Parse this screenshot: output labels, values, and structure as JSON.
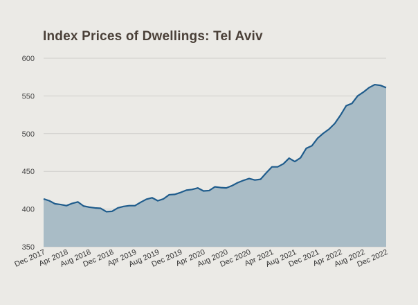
{
  "chart_data": {
    "type": "area",
    "title": "Index Prices of Dwellings: Tel Aviv",
    "xlabel": "",
    "ylabel": "",
    "ylim": [
      350,
      600
    ],
    "yticks": [
      350,
      400,
      450,
      500,
      550,
      600
    ],
    "grid": true,
    "legend": "none",
    "x_tick_labels": [
      "Dec 2017",
      "Apr 2018",
      "Aug 2018",
      "Dec 2018",
      "Apr 2019",
      "Aug 2019",
      "Dec 2019",
      "Apr 2020",
      "Aug 2020",
      "Dec 2020",
      "Apr 2021",
      "Aug 2021",
      "Dec 2021",
      "Apr 2022",
      "Aug 2022",
      "Dec 2022"
    ],
    "x": [
      "Dec 2017",
      "Jan 2018",
      "Feb 2018",
      "Mar 2018",
      "Apr 2018",
      "May 2018",
      "Jun 2018",
      "Jul 2018",
      "Aug 2018",
      "Sep 2018",
      "Oct 2018",
      "Nov 2018",
      "Dec 2018",
      "Jan 2019",
      "Feb 2019",
      "Mar 2019",
      "Apr 2019",
      "May 2019",
      "Jun 2019",
      "Jul 2019",
      "Aug 2019",
      "Sep 2019",
      "Oct 2019",
      "Nov 2019",
      "Dec 2019",
      "Jan 2020",
      "Feb 2020",
      "Mar 2020",
      "Apr 2020",
      "May 2020",
      "Jun 2020",
      "Jul 2020",
      "Aug 2020",
      "Sep 2020",
      "Oct 2020",
      "Nov 2020",
      "Dec 2020",
      "Jan 2021",
      "Feb 2021",
      "Mar 2021",
      "Apr 2021",
      "May 2021",
      "Jun 2021",
      "Jul 2021",
      "Aug 2021",
      "Sep 2021",
      "Oct 2021",
      "Nov 2021",
      "Dec 2021",
      "Jan 2022",
      "Feb 2022",
      "Mar 2022",
      "Apr 2022",
      "May 2022",
      "Jun 2022",
      "Jul 2022",
      "Aug 2022",
      "Sep 2022",
      "Oct 2022",
      "Nov 2022",
      "Dec 2022"
    ],
    "series": [
      {
        "values": [
          413.5,
          411,
          407,
          406,
          404.5,
          407.5,
          409.5,
          404,
          402.5,
          401.5,
          401,
          396.5,
          397,
          401.5,
          403.5,
          404.5,
          404.5,
          409,
          413,
          415,
          411,
          413.5,
          419,
          419.5,
          422,
          425,
          426,
          428,
          424,
          424.5,
          429.5,
          428.5,
          428,
          431,
          435,
          438,
          440.5,
          438.5,
          439.5,
          448,
          456,
          456,
          460,
          467.5,
          463,
          468,
          480.5,
          484,
          494,
          500.5,
          506,
          513.5,
          524.5,
          537,
          540,
          550,
          555,
          561,
          565,
          564,
          561
        ],
        "line_color": "#1f5c8c",
        "fill_color": "#a9bcc6"
      }
    ]
  }
}
